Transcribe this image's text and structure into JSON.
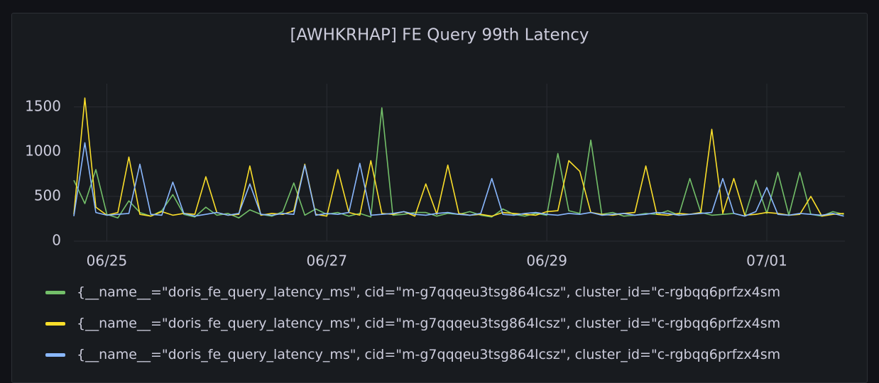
{
  "chart_data": {
    "type": "line",
    "title": "[AWHKRHAP] FE Query 99th Latency",
    "x": [
      24.7,
      24.8,
      24.9,
      25.0,
      25.1,
      25.2,
      25.3,
      25.4,
      25.5,
      25.6,
      25.7,
      25.8,
      25.9,
      26.0,
      26.1,
      26.2,
      26.3,
      26.4,
      26.5,
      26.6,
      26.7,
      26.8,
      26.9,
      27.0,
      27.1,
      27.2,
      27.3,
      27.4,
      27.5,
      27.6,
      27.7,
      27.8,
      27.9,
      28.0,
      28.1,
      28.2,
      28.3,
      28.4,
      28.5,
      28.6,
      28.7,
      28.8,
      28.9,
      29.0,
      29.1,
      29.2,
      29.3,
      29.4,
      29.5,
      29.6,
      29.7,
      29.8,
      29.9,
      30.0,
      30.1,
      30.2,
      30.3,
      30.4,
      30.5,
      30.6,
      30.7,
      30.8,
      30.9,
      31.0,
      31.1,
      31.2,
      31.3,
      31.4,
      31.5,
      31.6,
      31.7
    ],
    "series": [
      {
        "name": "{__name__=\"doris_fe_query_latency_ms\", cid=\"m-g7qqqeu3tsg864lcsz\", cluster_id=\"c-rgbqq6prfzx4sm",
        "color": "#73bf69",
        "values": [
          680,
          420,
          800,
          300,
          260,
          450,
          320,
          280,
          340,
          520,
          300,
          270,
          380,
          290,
          310,
          260,
          350,
          300,
          280,
          330,
          650,
          290,
          360,
          300,
          320,
          280,
          310,
          270,
          1490,
          290,
          300,
          320,
          320,
          280,
          310,
          300,
          330,
          290,
          270,
          360,
          300,
          280,
          310,
          290,
          980,
          340,
          310,
          1130,
          300,
          320,
          280,
          290,
          310,
          300,
          340,
          290,
          700,
          320,
          290,
          300,
          310,
          280,
          680,
          310,
          770,
          290,
          770,
          300,
          280,
          330,
          300
        ]
      },
      {
        "name": "{__name__=\"doris_fe_query_latency_ms\", cid=\"m-g7qqqeu3tsg864lcsz\", cluster_id=\"c-rgbqq6prfzx4sm",
        "color": "#fade2a",
        "values": [
          300,
          1600,
          380,
          290,
          320,
          940,
          300,
          280,
          330,
          290,
          310,
          300,
          720,
          320,
          290,
          300,
          840,
          290,
          310,
          300,
          340,
          860,
          300,
          280,
          800,
          320,
          290,
          900,
          310,
          300,
          330,
          280,
          640,
          300,
          850,
          310,
          290,
          300,
          280,
          320,
          310,
          300,
          290,
          330,
          340,
          900,
          780,
          320,
          300,
          290,
          310,
          320,
          840,
          300,
          290,
          310,
          300,
          320,
          1250,
          310,
          700,
          290,
          300,
          320,
          310,
          290,
          300,
          500,
          280,
          300,
          310
        ]
      },
      {
        "name": "{__name__=\"doris_fe_query_latency_ms\", cid=\"m-g7qqqeu3tsg864lcsz\", cluster_id=\"c-rgbqq6prfzx4sm",
        "color": "#8ab8ff",
        "values": [
          280,
          1100,
          320,
          290,
          300,
          310,
          860,
          300,
          290,
          660,
          310,
          280,
          300,
          320,
          290,
          310,
          640,
          300,
          290,
          310,
          300,
          850,
          290,
          310,
          300,
          320,
          870,
          290,
          300,
          310,
          330,
          300,
          290,
          310,
          320,
          300,
          290,
          310,
          700,
          300,
          290,
          310,
          320,
          300,
          290,
          310,
          300,
          320,
          290,
          300,
          310,
          290,
          300,
          320,
          310,
          290,
          300,
          310,
          320,
          700,
          310,
          280,
          330,
          600,
          300,
          290,
          310,
          300,
          290,
          310,
          280
        ]
      }
    ],
    "xlim": [
      24.7,
      31.71
    ],
    "xticks": [
      {
        "value": 25,
        "label": "06/25"
      },
      {
        "value": 27,
        "label": "06/27"
      },
      {
        "value": 29,
        "label": "06/29"
      },
      {
        "value": 31,
        "label": "07/01"
      }
    ],
    "ylim": [
      0,
      1760
    ],
    "yticks": [
      0,
      500,
      1000,
      1500
    ],
    "grid": true
  }
}
